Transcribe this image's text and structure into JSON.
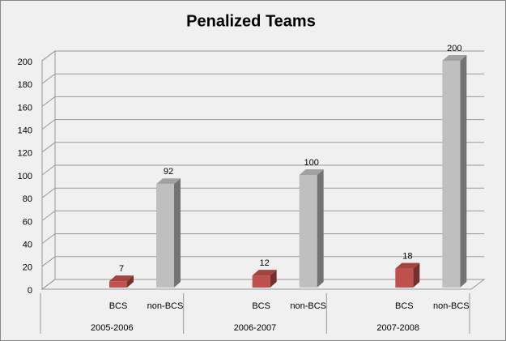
{
  "chart_data": {
    "type": "bar3d",
    "title": "Penalized Teams",
    "groups": [
      "2005-2006",
      "2006-2007",
      "2007-2008"
    ],
    "categories": [
      "BCS",
      "non-BCS",
      "BCS",
      "non-BCS",
      "BCS",
      "non-BCS"
    ],
    "values": [
      7,
      92,
      12,
      100,
      18,
      200
    ],
    "colors": [
      "#c0504d",
      "#bfbfbf",
      "#c0504d",
      "#bfbfbf",
      "#c0504d",
      "#bfbfbf"
    ],
    "ylim": [
      0,
      200
    ],
    "yticks": [
      0,
      20,
      40,
      60,
      80,
      100,
      120,
      140,
      160,
      180,
      200
    ],
    "grid": true
  }
}
